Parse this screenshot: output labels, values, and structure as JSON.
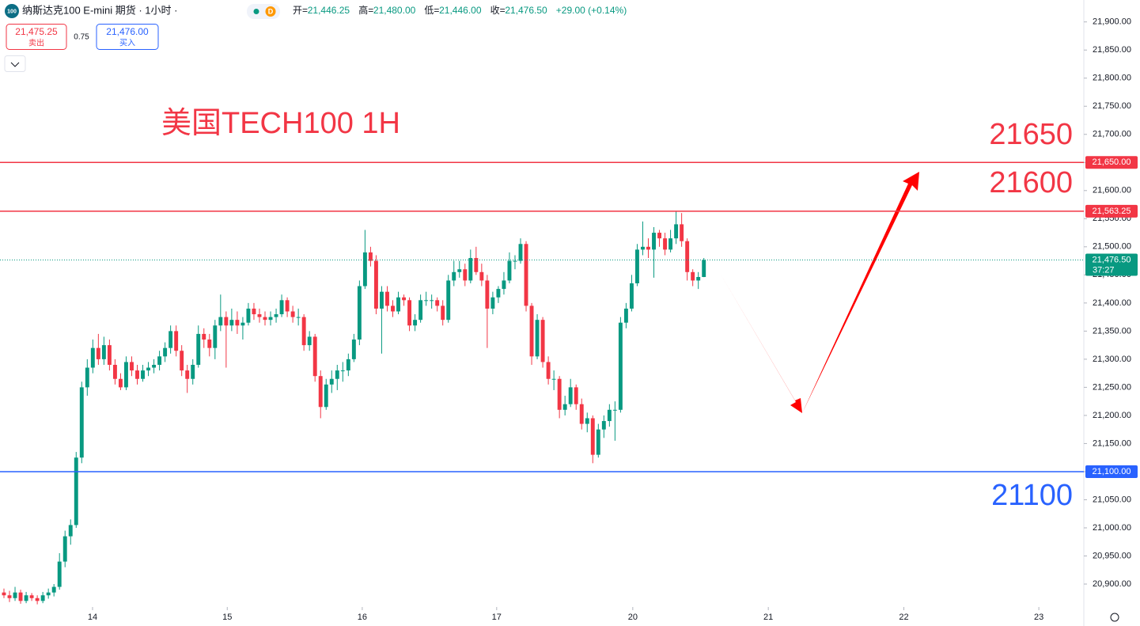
{
  "header": {
    "logo": "100",
    "symbol": "纳斯达克100 E-mini 期货 · 1小时 ·",
    "session": "D",
    "ohlc_items": [
      {
        "label": "开=",
        "value": "21,446.25"
      },
      {
        "label": "高=",
        "value": "21,480.00"
      },
      {
        "label": "低=",
        "value": "21,446.00"
      },
      {
        "label": "收=",
        "value": "21,476.50"
      }
    ],
    "change": "+29.00 (+0.14%)",
    "sell": {
      "price": "21,475.25",
      "label": "卖出"
    },
    "spread": "0.75",
    "buy": {
      "price": "21,476.00",
      "label": "买入"
    }
  },
  "chart_data": {
    "type": "candlestick",
    "title": "美国TECH100 1H",
    "up_color": "#089981",
    "down_color": "#f23645",
    "ohlc": [
      [
        20885,
        20892,
        20875,
        20880
      ],
      [
        20880,
        20888,
        20868,
        20875
      ],
      [
        20875,
        20895,
        20870,
        20885
      ],
      [
        20885,
        20890,
        20865,
        20870
      ],
      [
        20870,
        20886,
        20866,
        20880
      ],
      [
        20880,
        20884,
        20870,
        20875
      ],
      [
        20875,
        20880,
        20864,
        20870
      ],
      [
        20870,
        20886,
        20866,
        20880
      ],
      [
        20880,
        20892,
        20874,
        20885
      ],
      [
        20885,
        20900,
        20878,
        20895
      ],
      [
        20895,
        20955,
        20890,
        20940
      ],
      [
        20940,
        20995,
        20930,
        20985
      ],
      [
        20985,
        21015,
        20970,
        21005
      ],
      [
        21005,
        21135,
        21000,
        21125
      ],
      [
        21125,
        21260,
        21115,
        21250
      ],
      [
        21250,
        21300,
        21235,
        21285
      ],
      [
        21285,
        21335,
        21275,
        21320
      ],
      [
        21320,
        21345,
        21290,
        21300
      ],
      [
        21300,
        21340,
        21290,
        21325
      ],
      [
        21325,
        21335,
        21280,
        21290
      ],
      [
        21290,
        21300,
        21255,
        21265
      ],
      [
        21265,
        21275,
        21245,
        21250
      ],
      [
        21250,
        21305,
        21245,
        21295
      ],
      [
        21295,
        21305,
        21270,
        21280
      ],
      [
        21280,
        21290,
        21255,
        21265
      ],
      [
        21265,
        21290,
        21260,
        21280
      ],
      [
        21280,
        21295,
        21270,
        21285
      ],
      [
        21285,
        21300,
        21275,
        21290
      ],
      [
        21290,
        21315,
        21280,
        21305
      ],
      [
        21305,
        21330,
        21295,
        21320
      ],
      [
        21320,
        21360,
        21310,
        21350
      ],
      [
        21350,
        21360,
        21305,
        21315
      ],
      [
        21315,
        21325,
        21270,
        21280
      ],
      [
        21280,
        21290,
        21240,
        21265
      ],
      [
        21265,
        21300,
        21255,
        21290
      ],
      [
        21290,
        21360,
        21285,
        21345
      ],
      [
        21345,
        21355,
        21320,
        21335
      ],
      [
        21335,
        21345,
        21305,
        21320
      ],
      [
        21320,
        21370,
        21300,
        21360
      ],
      [
        21360,
        21415,
        21350,
        21375
      ],
      [
        21375,
        21385,
        21285,
        21360
      ],
      [
        21360,
        21390,
        21350,
        21370
      ],
      [
        21370,
        21385,
        21345,
        21360
      ],
      [
        21360,
        21375,
        21335,
        21365
      ],
      [
        21365,
        21400,
        21360,
        21390
      ],
      [
        21390,
        21400,
        21370,
        21380
      ],
      [
        21380,
        21390,
        21365,
        21375
      ],
      [
        21375,
        21385,
        21360,
        21370
      ],
      [
        21370,
        21385,
        21360,
        21375
      ],
      [
        21375,
        21390,
        21365,
        21380
      ],
      [
        21380,
        21415,
        21375,
        21405
      ],
      [
        21405,
        21410,
        21375,
        21385
      ],
      [
        21385,
        21395,
        21365,
        21375
      ],
      [
        21375,
        21390,
        21360,
        21375
      ],
      [
        21375,
        21380,
        21315,
        21325
      ],
      [
        21325,
        21350,
        21315,
        21340
      ],
      [
        21340,
        21345,
        21260,
        21270
      ],
      [
        21270,
        21280,
        21195,
        21215
      ],
      [
        21215,
        21265,
        21210,
        21255
      ],
      [
        21255,
        21280,
        21240,
        21265
      ],
      [
        21265,
        21290,
        21245,
        21280
      ],
      [
        21280,
        21295,
        21260,
        21280
      ],
      [
        21280,
        21310,
        21270,
        21300
      ],
      [
        21300,
        21345,
        21295,
        21335
      ],
      [
        21335,
        21440,
        21325,
        21430
      ],
      [
        21430,
        21530,
        21425,
        21490
      ],
      [
        21490,
        21500,
        21465,
        21475
      ],
      [
        21475,
        21485,
        21380,
        21390
      ],
      [
        21390,
        21430,
        21310,
        21420
      ],
      [
        21420,
        21430,
        21385,
        21395
      ],
      [
        21395,
        21405,
        21375,
        21385
      ],
      [
        21385,
        21420,
        21380,
        21410
      ],
      [
        21410,
        21415,
        21395,
        21405
      ],
      [
        21405,
        21410,
        21350,
        21360
      ],
      [
        21360,
        21380,
        21350,
        21370
      ],
      [
        21370,
        21415,
        21365,
        21405
      ],
      [
        21405,
        21420,
        21395,
        21405
      ],
      [
        21405,
        21415,
        21390,
        21405
      ],
      [
        21405,
        21410,
        21385,
        21395
      ],
      [
        21395,
        21405,
        21360,
        21370
      ],
      [
        21370,
        21450,
        21365,
        21440
      ],
      [
        21440,
        21475,
        21430,
        21455
      ],
      [
        21455,
        21475,
        21445,
        21460
      ],
      [
        21460,
        21470,
        21430,
        21440
      ],
      [
        21440,
        21495,
        21435,
        21480
      ],
      [
        21480,
        21500,
        21450,
        21455
      ],
      [
        21455,
        21470,
        21430,
        21440
      ],
      [
        21440,
        21450,
        21320,
        21390
      ],
      [
        21390,
        21420,
        21380,
        21410
      ],
      [
        21410,
        21430,
        21400,
        21425
      ],
      [
        21425,
        21455,
        21415,
        21440
      ],
      [
        21440,
        21490,
        21435,
        21475
      ],
      [
        21475,
        21485,
        21460,
        21475
      ],
      [
        21475,
        21515,
        21470,
        21505
      ],
      [
        21505,
        21510,
        21385,
        21395
      ],
      [
        21395,
        21400,
        21290,
        21305
      ],
      [
        21305,
        21380,
        21300,
        21370
      ],
      [
        21370,
        21375,
        21285,
        21295
      ],
      [
        21295,
        21305,
        21255,
        21265
      ],
      [
        21265,
        21280,
        21245,
        21265
      ],
      [
        21265,
        21270,
        21195,
        21210
      ],
      [
        21210,
        21235,
        21200,
        21220
      ],
      [
        21220,
        21265,
        21215,
        21250
      ],
      [
        21250,
        21255,
        21210,
        21220
      ],
      [
        21220,
        21230,
        21175,
        21185
      ],
      [
        21185,
        21205,
        21170,
        21195
      ],
      [
        21195,
        21200,
        21115,
        21130
      ],
      [
        21130,
        21185,
        21125,
        21175
      ],
      [
        21175,
        21200,
        21160,
        21190
      ],
      [
        21190,
        21220,
        21180,
        21210
      ],
      [
        21210,
        21225,
        21155,
        21210
      ],
      [
        21210,
        21375,
        21205,
        21365
      ],
      [
        21365,
        21400,
        21355,
        21390
      ],
      [
        21390,
        21450,
        21385,
        21435
      ],
      [
        21435,
        21505,
        21430,
        21495
      ],
      [
        21495,
        21545,
        21485,
        21500
      ],
      [
        21500,
        21515,
        21480,
        21495
      ],
      [
        21495,
        21535,
        21445,
        21525
      ],
      [
        21525,
        21530,
        21500,
        21515
      ],
      [
        21515,
        21525,
        21485,
        21495
      ],
      [
        21495,
        21530,
        21490,
        21515
      ],
      [
        21515,
        21563.25,
        21505,
        21540
      ],
      [
        21540,
        21560,
        21500,
        21510
      ],
      [
        21510,
        21515,
        21440,
        21455
      ],
      [
        21455,
        21460,
        21430,
        21440
      ],
      [
        21440,
        21455,
        21425,
        21446.25
      ],
      [
        21446.25,
        21480,
        21446,
        21476.5
      ]
    ],
    "xlim": [
      -0.71,
      194.4
    ],
    "xticks": [
      {
        "value": 15.95,
        "label": "14"
      },
      {
        "value": 40.2,
        "label": "15"
      },
      {
        "value": 64.5,
        "label": "16"
      },
      {
        "value": 88.7,
        "label": "17"
      },
      {
        "value": 113.2,
        "label": "20"
      },
      {
        "value": 137.6,
        "label": "21"
      },
      {
        "value": 162.0,
        "label": "22"
      },
      {
        "value": 186.3,
        "label": "23"
      }
    ],
    "ylim": [
      20862,
      21939
    ],
    "yticks": [
      {
        "value": 20900,
        "label": "20,900.00"
      },
      {
        "value": 20950,
        "label": "20,950.00"
      },
      {
        "value": 21000,
        "label": "21,000.00"
      },
      {
        "value": 21050,
        "label": "21,050.00"
      },
      {
        "value": 21100,
        "label": "21,100.00"
      },
      {
        "value": 21150,
        "label": "21,150.00"
      },
      {
        "value": 21200,
        "label": "21,200.00"
      },
      {
        "value": 21250,
        "label": "21,250.00"
      },
      {
        "value": 21300,
        "label": "21,300.00"
      },
      {
        "value": 21350,
        "label": "21,350.00"
      },
      {
        "value": 21400,
        "label": "21,400.00"
      },
      {
        "value": 21450,
        "label": "21,450.00"
      },
      {
        "value": 21500,
        "label": "21,500.00"
      },
      {
        "value": 21550,
        "label": "21,550.00"
      },
      {
        "value": 21600,
        "label": "21,600.00"
      },
      {
        "value": 21650,
        "label": "21,650.00"
      },
      {
        "value": 21700,
        "label": "21,700.00"
      },
      {
        "value": 21750,
        "label": "21,750.00"
      },
      {
        "value": 21800,
        "label": "21,800.00"
      },
      {
        "value": 21850,
        "label": "21,850.00"
      },
      {
        "value": 21900,
        "label": "21,900.00"
      }
    ],
    "levels": [
      {
        "value": 21650,
        "label": "21,650.00",
        "color": "#f23645"
      },
      {
        "value": 21563.25,
        "label": "21,563.25",
        "color": "#f23645"
      },
      {
        "value": 21100,
        "label": "21,100.00",
        "color": "#2962ff"
      }
    ],
    "last_price": {
      "value": 21476.5,
      "label": "21,476.50",
      "countdown": "37:27",
      "color": "#089981"
    },
    "annotations": [
      {
        "text": "21650",
        "color": "#f23645"
      },
      {
        "text": "21600",
        "color": "#f23645"
      },
      {
        "text": "21100",
        "color": "#2962ff"
      }
    ]
  }
}
